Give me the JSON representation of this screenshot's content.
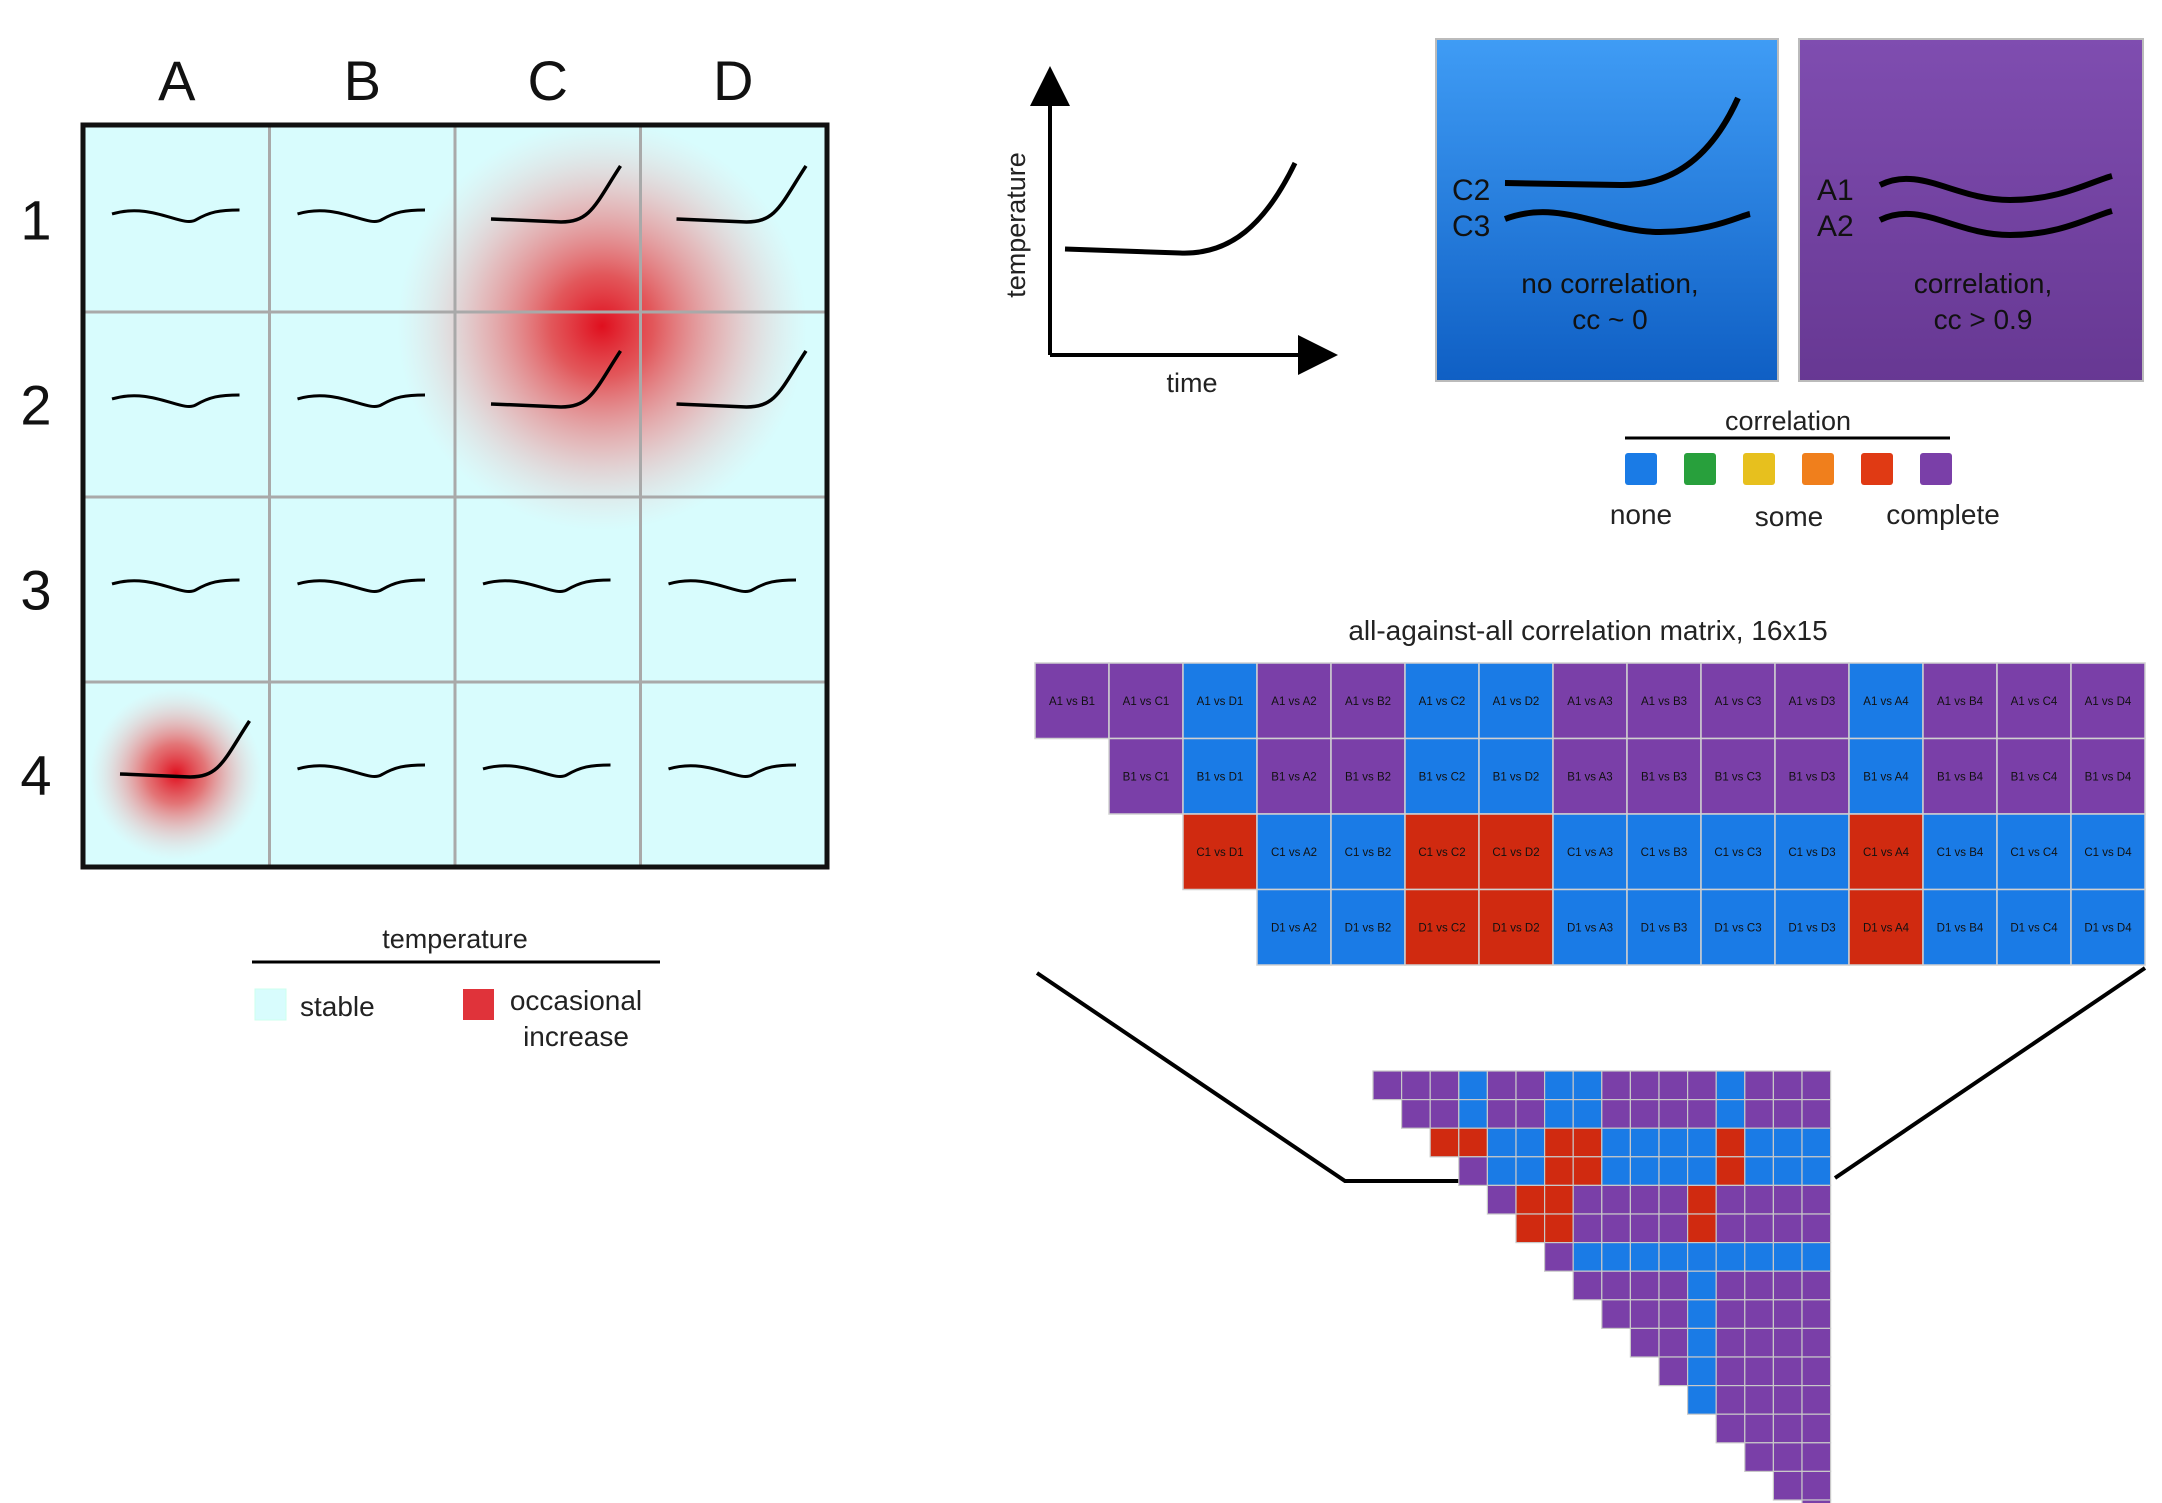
{
  "grid": {
    "columns": [
      "A",
      "B",
      "C",
      "D"
    ],
    "rows": [
      "1",
      "2",
      "3",
      "4"
    ],
    "elevated_cells": [
      "C1",
      "D1",
      "C2",
      "D2",
      "A4"
    ],
    "hotspots": [
      {
        "center": "C1/C2/D1/D2 corner",
        "strength": "large"
      },
      {
        "center": "A4",
        "strength": "small"
      }
    ]
  },
  "temperature_legend": {
    "title": "temperature",
    "stable_label": "stable",
    "increase_label_line1": "occasional",
    "increase_label_line2": "increase",
    "stable_color": "#d8fcfd",
    "increase_color": "#e0333a"
  },
  "time_plot": {
    "ylabel": "temperature",
    "xlabel": "time"
  },
  "example_panels": [
    {
      "label1": "C2",
      "label2": "C3",
      "caption1": "no correlation,",
      "caption2": "cc ~ 0",
      "color": "#1c73da"
    },
    {
      "label1": "A1",
      "label2": "A2",
      "caption1": "correlation,",
      "caption2": "cc > 0.9",
      "color": "#6f3f9e"
    }
  ],
  "correlation_legend": {
    "title": "correlation",
    "swatches": [
      "#1a7be6",
      "#28a03c",
      "#e7c01e",
      "#f07f1c",
      "#e03a14",
      "#7a3fa8"
    ],
    "low_label": "none",
    "mid_label": "some",
    "high_label": "complete"
  },
  "matrix": {
    "title": "all-against-all correlation matrix, 16x15",
    "colors": {
      "purple": "#7a3fa8",
      "blue": "#1a7be6",
      "red": "#d02a10"
    },
    "rows": [
      {
        "cells": [
          {
            "label": "A1 vs B1",
            "c": "purple"
          },
          {
            "label": "A1 vs C1",
            "c": "purple"
          },
          {
            "label": "A1 vs D1",
            "c": "blue"
          },
          {
            "label": "A1 vs A2",
            "c": "purple"
          },
          {
            "label": "A1 vs B2",
            "c": "purple"
          },
          {
            "label": "A1 vs C2",
            "c": "blue"
          },
          {
            "label": "A1 vs D2",
            "c": "blue"
          },
          {
            "label": "A1 vs A3",
            "c": "purple"
          },
          {
            "label": "A1 vs B3",
            "c": "purple"
          },
          {
            "label": "A1 vs C3",
            "c": "purple"
          },
          {
            "label": "A1 vs D3",
            "c": "purple"
          },
          {
            "label": "A1 vs A4",
            "c": "blue"
          },
          {
            "label": "A1 vs B4",
            "c": "purple"
          },
          {
            "label": "A1 vs C4",
            "c": "purple"
          },
          {
            "label": "A1 vs D4",
            "c": "purple"
          }
        ]
      },
      {
        "cells": [
          {
            "label": "B1 vs C1",
            "c": "purple"
          },
          {
            "label": "B1 vs D1",
            "c": "blue"
          },
          {
            "label": "B1 vs A2",
            "c": "purple"
          },
          {
            "label": "B1 vs B2",
            "c": "purple"
          },
          {
            "label": "B1 vs C2",
            "c": "blue"
          },
          {
            "label": "B1 vs D2",
            "c": "blue"
          },
          {
            "label": "B1 vs A3",
            "c": "purple"
          },
          {
            "label": "B1 vs B3",
            "c": "purple"
          },
          {
            "label": "B1 vs C3",
            "c": "purple"
          },
          {
            "label": "B1 vs D3",
            "c": "purple"
          },
          {
            "label": "B1 vs A4",
            "c": "blue"
          },
          {
            "label": "B1 vs B4",
            "c": "purple"
          },
          {
            "label": "B1 vs C4",
            "c": "purple"
          },
          {
            "label": "B1 vs D4",
            "c": "purple"
          }
        ]
      },
      {
        "cells": [
          {
            "label": "C1 vs D1",
            "c": "red"
          },
          {
            "label": "C1 vs A2",
            "c": "blue"
          },
          {
            "label": "C1 vs B2",
            "c": "blue"
          },
          {
            "label": "C1 vs C2",
            "c": "red"
          },
          {
            "label": "C1 vs D2",
            "c": "red"
          },
          {
            "label": "C1 vs A3",
            "c": "blue"
          },
          {
            "label": "C1 vs B3",
            "c": "blue"
          },
          {
            "label": "C1 vs C3",
            "c": "blue"
          },
          {
            "label": "C1 vs D3",
            "c": "blue"
          },
          {
            "label": "C1 vs A4",
            "c": "red"
          },
          {
            "label": "C1 vs B4",
            "c": "blue"
          },
          {
            "label": "C1 vs C4",
            "c": "blue"
          },
          {
            "label": "C1 vs D4",
            "c": "blue"
          }
        ]
      },
      {
        "cells": [
          {
            "label": "D1 vs A2",
            "c": "blue"
          },
          {
            "label": "D1 vs B2",
            "c": "blue"
          },
          {
            "label": "D1 vs C2",
            "c": "red"
          },
          {
            "label": "D1 vs D2",
            "c": "red"
          },
          {
            "label": "D1 vs A3",
            "c": "blue"
          },
          {
            "label": "D1 vs B3",
            "c": "blue"
          },
          {
            "label": "D1 vs C3",
            "c": "blue"
          },
          {
            "label": "D1 vs D3",
            "c": "blue"
          },
          {
            "label": "D1 vs A4",
            "c": "red"
          },
          {
            "label": "D1 vs B4",
            "c": "blue"
          },
          {
            "label": "D1 vs C4",
            "c": "blue"
          },
          {
            "label": "D1 vs D4",
            "c": "blue"
          }
        ]
      }
    ]
  }
}
